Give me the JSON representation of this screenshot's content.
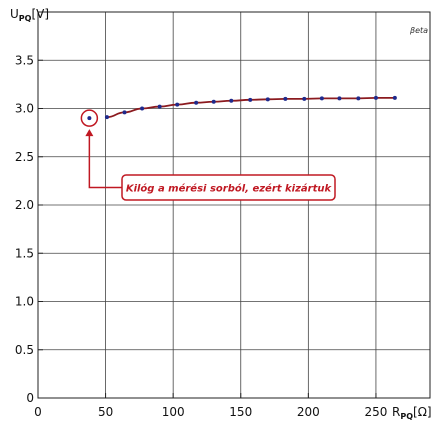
{
  "chart_data": {
    "type": "line",
    "ylabel_main": "U",
    "ylabel_sub": "PQ",
    "ylabel_unit": "[V]",
    "xlabel_main": "R",
    "xlabel_sub": "PQ",
    "xlabel_unit": "[Ω]",
    "xlim": [
      0,
      290
    ],
    "ylim": [
      0,
      4.0
    ],
    "x_ticks": [
      0,
      50,
      100,
      150,
      200,
      250
    ],
    "y_ticks": [
      0,
      0.5,
      1.0,
      1.5,
      2.0,
      2.5,
      3.0,
      3.5
    ],
    "y_tick_labels": [
      "0",
      "0.5",
      "1.0",
      "1.5",
      "2.0",
      "2.5",
      "3.0",
      "3.5"
    ],
    "grid": true,
    "series": [
      {
        "x": [
          51,
          64,
          77,
          90,
          103,
          117,
          130,
          143,
          157,
          170,
          183,
          197,
          210,
          223,
          237,
          250,
          264
        ],
        "y": [
          2.91,
          2.96,
          3.0,
          3.02,
          3.04,
          3.06,
          3.07,
          3.08,
          3.09,
          3.095,
          3.1,
          3.1,
          3.105,
          3.105,
          3.105,
          3.11,
          3.11
        ],
        "color": "#8b1a1f",
        "marker_color": "#1f2a8c"
      }
    ],
    "excluded_point": {
      "x": 38,
      "y": 2.9
    },
    "annotation": {
      "text": "Kilóg a mérési sorból, ezért kizártuk",
      "color": "#c01822"
    },
    "logo_text": "βeta"
  }
}
